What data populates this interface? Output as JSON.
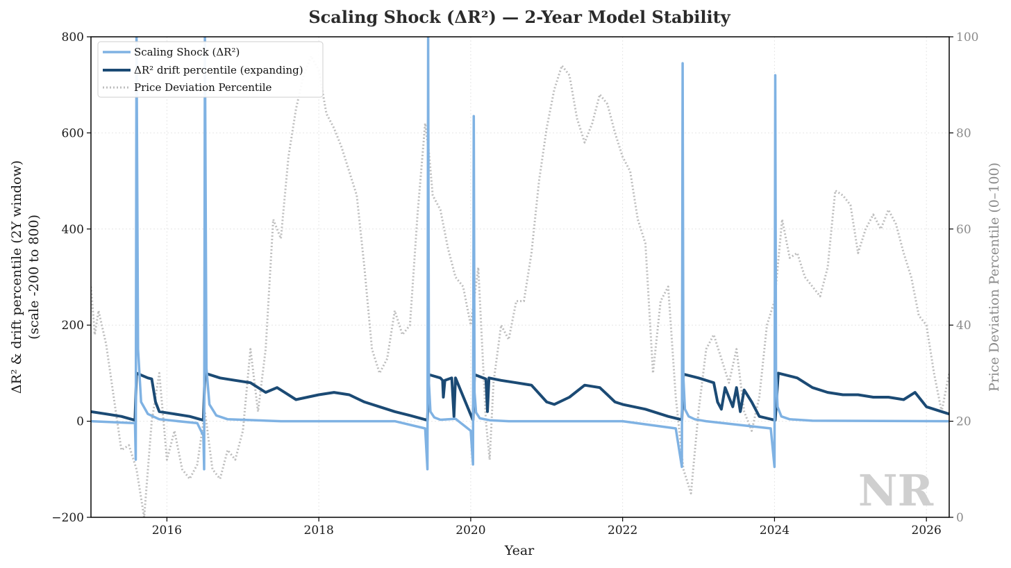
{
  "chart_data": {
    "type": "line",
    "title": "Scaling Shock (ΔR²) — 2-Year Model Stability",
    "xlabel": "Year",
    "ylabel_left_line1": "ΔR² & drift percentile (2Y window)",
    "ylabel_left_line2": "(scale -200 to 800)",
    "ylabel_right": "Price Deviation Percentile (0–100)",
    "xlim": [
      2015.0,
      2026.3
    ],
    "ylim_left": [
      -200,
      800
    ],
    "ylim_right": [
      0,
      100
    ],
    "x_ticks": [
      2016,
      2018,
      2020,
      2022,
      2024,
      2026
    ],
    "y_ticks_left": [
      -200,
      0,
      200,
      400,
      600,
      800
    ],
    "y_ticks_right": [
      0,
      20,
      40,
      60,
      80,
      100
    ],
    "y_tick_labels_left": [
      "−200",
      "0",
      "200",
      "400",
      "600",
      "800"
    ],
    "grid": true,
    "legend_position": "top-left",
    "watermark": "NR",
    "colors": {
      "shock": "#7fb2e3",
      "drift": "#1b4a74",
      "price": "#bdbdbd"
    },
    "series": [
      {
        "name": "Scaling Shock (ΔR²)",
        "axis": "left",
        "style": "solid",
        "x": [
          2015.0,
          2015.58,
          2015.59,
          2015.6,
          2015.62,
          2015.66,
          2015.75,
          2015.9,
          2016.4,
          2016.48,
          2016.49,
          2016.5,
          2016.52,
          2016.56,
          2016.65,
          2016.8,
          2017.5,
          2019.0,
          2019.4,
          2019.43,
          2019.44,
          2019.45,
          2019.47,
          2019.52,
          2019.6,
          2019.8,
          2020.0,
          2020.03,
          2020.04,
          2020.05,
          2020.07,
          2020.12,
          2020.25,
          2020.5,
          2022.0,
          2022.7,
          2022.78,
          2022.79,
          2022.8,
          2022.82,
          2022.87,
          2022.95,
          2023.1,
          2023.95,
          2024.0,
          2024.01,
          2024.02,
          2024.04,
          2024.09,
          2024.2,
          2024.5,
          2026.3
        ],
        "y": [
          0,
          -4,
          -80,
          800,
          150,
          40,
          15,
          4,
          -4,
          -30,
          -100,
          800,
          110,
          35,
          12,
          4,
          0,
          0,
          -15,
          -100,
          800,
          80,
          20,
          8,
          3,
          5,
          -20,
          -90,
          635,
          60,
          18,
          6,
          2,
          0,
          0,
          -15,
          -95,
          745,
          90,
          25,
          10,
          4,
          0,
          -15,
          -95,
          720,
          100,
          30,
          10,
          4,
          1,
          0
        ]
      },
      {
        "name": "ΔR² drift percentile (expanding)",
        "axis": "left",
        "style": "solid",
        "x": [
          2015.0,
          2015.2,
          2015.4,
          2015.58,
          2015.6,
          2015.75,
          2015.8,
          2015.85,
          2015.9,
          2016.1,
          2016.3,
          2016.48,
          2016.5,
          2016.7,
          2016.9,
          2017.1,
          2017.3,
          2017.45,
          2017.55,
          2017.7,
          2017.85,
          2018.0,
          2018.2,
          2018.4,
          2018.6,
          2018.8,
          2019.0,
          2019.2,
          2019.43,
          2019.45,
          2019.6,
          2019.63,
          2019.64,
          2019.66,
          2019.75,
          2019.78,
          2019.8,
          2020.03,
          2020.05,
          2020.2,
          2020.22,
          2020.24,
          2020.4,
          2020.6,
          2020.8,
          2021.0,
          2021.1,
          2021.3,
          2021.5,
          2021.7,
          2021.8,
          2021.9,
          2022.0,
          2022.3,
          2022.6,
          2022.78,
          2022.8,
          2023.0,
          2023.2,
          2023.25,
          2023.3,
          2023.35,
          2023.45,
          2023.5,
          2023.55,
          2023.6,
          2023.7,
          2023.8,
          2024.01,
          2024.05,
          2024.3,
          2024.5,
          2024.7,
          2024.9,
          2025.1,
          2025.3,
          2025.5,
          2025.7,
          2025.85,
          2026.0,
          2026.2,
          2026.3
        ],
        "y": [
          20,
          15,
          10,
          2,
          100,
          90,
          88,
          40,
          20,
          15,
          10,
          2,
          100,
          90,
          85,
          80,
          60,
          70,
          60,
          45,
          50,
          55,
          60,
          55,
          40,
          30,
          20,
          12,
          2,
          97,
          90,
          85,
          50,
          85,
          90,
          10,
          90,
          2,
          97,
          88,
          20,
          90,
          85,
          80,
          75,
          40,
          35,
          50,
          75,
          70,
          55,
          40,
          35,
          25,
          10,
          3,
          98,
          90,
          80,
          40,
          25,
          70,
          30,
          70,
          20,
          65,
          40,
          10,
          2,
          100,
          90,
          70,
          60,
          55,
          55,
          50,
          50,
          45,
          60,
          30,
          20,
          15
        ]
      },
      {
        "name": "Price Deviation Percentile",
        "axis": "right",
        "style": "dotted",
        "x": [
          2015.0,
          2015.05,
          2015.1,
          2015.2,
          2015.3,
          2015.4,
          2015.5,
          2015.6,
          2015.7,
          2015.8,
          2015.9,
          2016.0,
          2016.1,
          2016.2,
          2016.3,
          2016.4,
          2016.5,
          2016.6,
          2016.7,
          2016.8,
          2016.9,
          2017.0,
          2017.1,
          2017.2,
          2017.3,
          2017.4,
          2017.5,
          2017.6,
          2017.7,
          2017.8,
          2017.9,
          2018.0,
          2018.1,
          2018.2,
          2018.3,
          2018.4,
          2018.5,
          2018.6,
          2018.7,
          2018.8,
          2018.9,
          2019.0,
          2019.1,
          2019.2,
          2019.3,
          2019.4,
          2019.45,
          2019.5,
          2019.6,
          2019.7,
          2019.8,
          2019.9,
          2020.0,
          2020.1,
          2020.2,
          2020.25,
          2020.3,
          2020.4,
          2020.5,
          2020.6,
          2020.7,
          2020.8,
          2020.9,
          2021.0,
          2021.1,
          2021.2,
          2021.3,
          2021.4,
          2021.5,
          2021.6,
          2021.7,
          2021.8,
          2021.9,
          2022.0,
          2022.1,
          2022.2,
          2022.3,
          2022.4,
          2022.5,
          2022.6,
          2022.7,
          2022.8,
          2022.9,
          2023.0,
          2023.1,
          2023.2,
          2023.3,
          2023.4,
          2023.5,
          2023.6,
          2023.7,
          2023.8,
          2023.9,
          2024.0,
          2024.1,
          2024.2,
          2024.3,
          2024.4,
          2024.5,
          2024.6,
          2024.7,
          2024.8,
          2024.9,
          2025.0,
          2025.1,
          2025.2,
          2025.3,
          2025.4,
          2025.5,
          2025.6,
          2025.7,
          2025.8,
          2025.9,
          2026.0,
          2026.1,
          2026.2,
          2026.3
        ],
        "y": [
          48,
          38,
          43,
          36,
          25,
          14,
          15,
          10,
          0,
          20,
          30,
          12,
          18,
          10,
          8,
          11,
          22,
          10,
          8,
          14,
          12,
          18,
          35,
          22,
          35,
          62,
          58,
          75,
          85,
          92,
          96,
          93,
          84,
          81,
          77,
          72,
          67,
          52,
          35,
          30,
          33,
          43,
          38,
          40,
          63,
          82,
          76,
          67,
          64,
          56,
          50,
          48,
          40,
          52,
          20,
          12,
          28,
          40,
          37,
          45,
          45,
          55,
          70,
          81,
          89,
          94,
          92,
          83,
          78,
          82,
          88,
          86,
          80,
          75,
          72,
          62,
          57,
          30,
          45,
          48,
          25,
          10,
          5,
          22,
          35,
          38,
          33,
          28,
          35,
          22,
          18,
          25,
          40,
          45,
          62,
          54,
          55,
          50,
          48,
          46,
          52,
          68,
          67,
          65,
          55,
          60,
          63,
          60,
          64,
          61,
          55,
          50,
          42,
          40,
          30,
          22,
          30
        ]
      }
    ]
  }
}
